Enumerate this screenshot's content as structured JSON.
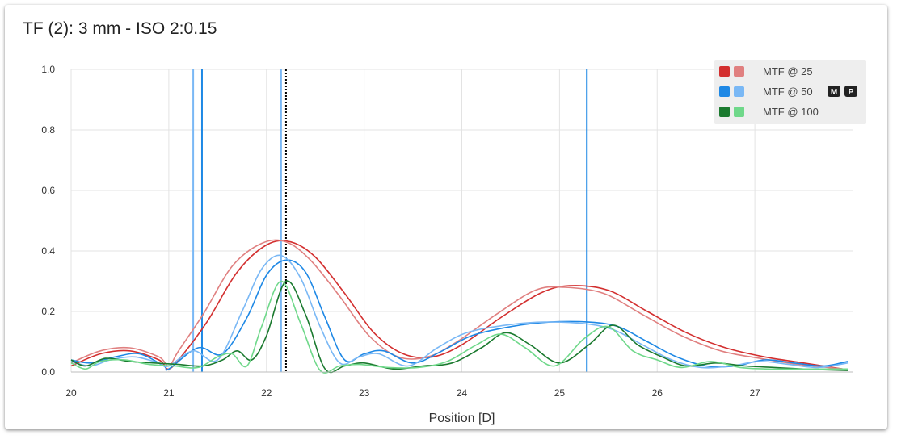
{
  "chart_data": {
    "type": "line",
    "title": "TF (2): 3 mm - ISO 2:0.15",
    "xlabel": "Position [D]",
    "ylabel": "",
    "xlim": [
      20,
      28
    ],
    "ylim": [
      0,
      1
    ],
    "x_ticks": [
      20,
      21,
      22,
      23,
      24,
      25,
      26,
      27
    ],
    "y_ticks": [
      "0.0",
      "0.2",
      "0.4",
      "0.6",
      "0.8",
      "1.0"
    ],
    "grid": true,
    "legend_position": "top-right",
    "legend": [
      {
        "label": "MTF @ 25",
        "colors": [
          "#d32f2f",
          "#e08080"
        ],
        "badges": []
      },
      {
        "label": "MTF @ 50",
        "colors": [
          "#1e88e5",
          "#7ab8f5"
        ],
        "badges": [
          "M",
          "P"
        ]
      },
      {
        "label": "MTF @ 100",
        "colors": [
          "#1b7a2f",
          "#6fd88a"
        ],
        "badges": []
      }
    ],
    "vertical_lines": [
      {
        "x": 21.25,
        "color": "#7ab8f5",
        "style": "solid"
      },
      {
        "x": 21.34,
        "color": "#1e88e5",
        "style": "solid"
      },
      {
        "x": 22.15,
        "color": "#7ab8f5",
        "style": "solid"
      },
      {
        "x": 22.2,
        "color": "#000000",
        "style": "dotted"
      },
      {
        "x": 25.28,
        "color": "#1e88e5",
        "style": "solid"
      }
    ],
    "series": [
      {
        "name": "MTF @ 25",
        "color": "#d32f2f",
        "x": [
          20,
          20.3,
          20.6,
          20.9,
          21.0,
          21.15,
          21.4,
          21.7,
          22.0,
          22.25,
          22.5,
          22.8,
          23.1,
          23.4,
          23.7,
          24.0,
          24.4,
          24.8,
          25.1,
          25.5,
          25.9,
          26.3,
          26.7,
          27.1,
          27.5,
          27.9
        ],
        "y": [
          0.02,
          0.06,
          0.07,
          0.04,
          0.01,
          0.06,
          0.17,
          0.33,
          0.42,
          0.43,
          0.38,
          0.26,
          0.13,
          0.06,
          0.05,
          0.09,
          0.18,
          0.26,
          0.285,
          0.27,
          0.2,
          0.13,
          0.08,
          0.05,
          0.03,
          0.01
        ]
      },
      {
        "name": "MTF @ 25",
        "color": "#e08080",
        "x": [
          20,
          20.3,
          20.6,
          20.9,
          21.0,
          21.1,
          21.35,
          21.65,
          21.95,
          22.2,
          22.45,
          22.75,
          23.05,
          23.35,
          23.65,
          23.95,
          24.35,
          24.75,
          25.05,
          25.45,
          25.85,
          26.25,
          26.65,
          27.05,
          27.45,
          27.9
        ],
        "y": [
          0.03,
          0.07,
          0.08,
          0.05,
          0.02,
          0.07,
          0.19,
          0.35,
          0.425,
          0.43,
          0.37,
          0.25,
          0.12,
          0.05,
          0.05,
          0.1,
          0.19,
          0.27,
          0.28,
          0.26,
          0.19,
          0.12,
          0.07,
          0.045,
          0.025,
          0.01
        ]
      },
      {
        "name": "MTF @ 50",
        "color": "#1e88e5",
        "x": [
          20,
          20.2,
          20.45,
          20.7,
          20.95,
          21.0,
          21.3,
          21.55,
          21.8,
          22.0,
          22.2,
          22.4,
          22.6,
          22.8,
          23.0,
          23.2,
          23.5,
          23.8,
          24.1,
          24.5,
          24.9,
          25.3,
          25.6,
          25.9,
          26.2,
          26.5,
          26.8,
          27.1,
          27.4,
          27.7,
          27.95
        ],
        "y": [
          0.04,
          0.03,
          0.05,
          0.06,
          0.02,
          0.01,
          0.08,
          0.06,
          0.18,
          0.32,
          0.37,
          0.33,
          0.18,
          0.04,
          0.06,
          0.07,
          0.03,
          0.07,
          0.12,
          0.15,
          0.165,
          0.165,
          0.15,
          0.1,
          0.05,
          0.02,
          0.02,
          0.04,
          0.03,
          0.02,
          0.035
        ]
      },
      {
        "name": "MTF @ 50",
        "color": "#7ab8f5",
        "x": [
          20,
          20.2,
          20.4,
          20.65,
          20.9,
          21.0,
          21.25,
          21.5,
          21.75,
          21.95,
          22.15,
          22.35,
          22.55,
          22.75,
          22.95,
          23.15,
          23.45,
          23.75,
          24.05,
          24.45,
          24.85,
          25.25,
          25.55,
          25.85,
          26.15,
          26.45,
          26.75,
          27.05,
          27.35,
          27.65,
          27.95
        ],
        "y": [
          0.035,
          0.02,
          0.04,
          0.05,
          0.03,
          0.02,
          0.07,
          0.04,
          0.2,
          0.34,
          0.385,
          0.31,
          0.15,
          0.03,
          0.05,
          0.06,
          0.02,
          0.08,
          0.13,
          0.155,
          0.165,
          0.16,
          0.14,
          0.09,
          0.04,
          0.015,
          0.02,
          0.035,
          0.025,
          0.015,
          0.03
        ]
      },
      {
        "name": "MTF @ 100",
        "color": "#1b7a2f",
        "x": [
          20,
          20.15,
          20.35,
          20.6,
          20.85,
          21.1,
          21.35,
          21.55,
          21.7,
          21.85,
          22.0,
          22.2,
          22.4,
          22.6,
          22.8,
          23.0,
          23.3,
          23.6,
          23.9,
          24.2,
          24.45,
          24.7,
          25.0,
          25.3,
          25.55,
          25.8,
          26.05,
          26.3,
          26.6,
          26.9,
          27.2,
          27.5,
          27.95
        ],
        "y": [
          0.04,
          0.02,
          0.045,
          0.035,
          0.03,
          0.025,
          0.02,
          0.04,
          0.07,
          0.04,
          0.12,
          0.3,
          0.19,
          0.01,
          0.02,
          0.03,
          0.01,
          0.02,
          0.03,
          0.08,
          0.13,
          0.09,
          0.03,
          0.09,
          0.155,
          0.09,
          0.05,
          0.02,
          0.03,
          0.02,
          0.015,
          0.01,
          0.005
        ]
      },
      {
        "name": "MTF @ 100",
        "color": "#6fd88a",
        "x": [
          20,
          20.15,
          20.3,
          20.55,
          20.8,
          21.05,
          21.3,
          21.5,
          21.65,
          21.8,
          21.95,
          22.15,
          22.35,
          22.55,
          22.75,
          22.95,
          23.25,
          23.55,
          23.85,
          24.15,
          24.4,
          24.65,
          24.95,
          25.25,
          25.5,
          25.75,
          26.0,
          26.25,
          26.55,
          26.85,
          27.15,
          27.45,
          27.95
        ],
        "y": [
          0.03,
          0.01,
          0.035,
          0.04,
          0.025,
          0.02,
          0.015,
          0.05,
          0.06,
          0.02,
          0.15,
          0.3,
          0.16,
          0.005,
          0.02,
          0.025,
          0.015,
          0.015,
          0.035,
          0.09,
          0.125,
          0.08,
          0.02,
          0.11,
          0.15,
          0.07,
          0.04,
          0.015,
          0.035,
          0.015,
          0.01,
          0.01,
          0.01
        ]
      }
    ]
  }
}
